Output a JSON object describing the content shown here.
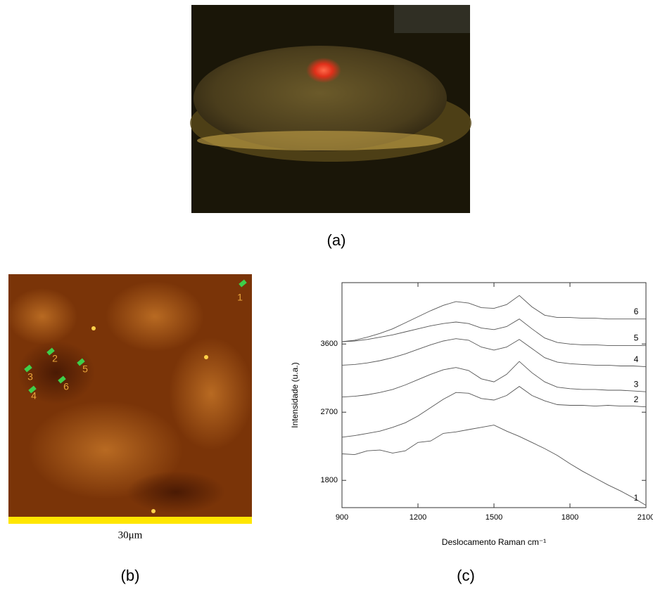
{
  "panels": {
    "a": "(a)",
    "b": "(b)",
    "c": "(c)"
  },
  "afm": {
    "scale_label": "30μm",
    "points": [
      "1",
      "2",
      "3",
      "4",
      "5",
      "6"
    ]
  },
  "chart_data": {
    "type": "line",
    "xlabel": "Deslocamento Raman cm⁻¹",
    "ylabel": "Intensidade (u.a.)",
    "x": [
      900,
      950,
      1000,
      1050,
      1100,
      1150,
      1200,
      1250,
      1300,
      1350,
      1400,
      1450,
      1500,
      1550,
      1600,
      1650,
      1700,
      1750,
      1800,
      1850,
      1900,
      1950,
      2000,
      2050,
      2100
    ],
    "xlim": [
      900,
      2100
    ],
    "xticks": [
      900,
      1200,
      1500,
      1800,
      2100
    ],
    "ylim": [
      1440,
      4410
    ],
    "yticks": [
      1800,
      2700,
      3600
    ],
    "series": [
      {
        "name": "1",
        "color": "#555555",
        "values": [
          2150,
          2140,
          2190,
          2200,
          2160,
          2190,
          2300,
          2320,
          2420,
          2440,
          2470,
          2500,
          2530,
          2450,
          2380,
          2300,
          2220,
          2130,
          2020,
          1920,
          1830,
          1740,
          1660,
          1570,
          1470
        ]
      },
      {
        "name": "2",
        "color": "#555555",
        "values": [
          2370,
          2390,
          2420,
          2450,
          2500,
          2560,
          2650,
          2760,
          2870,
          2960,
          2950,
          2880,
          2860,
          2920,
          3040,
          2920,
          2850,
          2800,
          2790,
          2790,
          2780,
          2790,
          2780,
          2780,
          2770
        ]
      },
      {
        "name": "3",
        "color": "#555555",
        "values": [
          2900,
          2910,
          2930,
          2960,
          3000,
          3060,
          3130,
          3200,
          3260,
          3290,
          3250,
          3140,
          3100,
          3200,
          3370,
          3220,
          3100,
          3030,
          3010,
          3000,
          3000,
          2990,
          2990,
          2980,
          2970
        ]
      },
      {
        "name": "4",
        "color": "#555555",
        "values": [
          3320,
          3330,
          3350,
          3380,
          3420,
          3470,
          3530,
          3590,
          3640,
          3670,
          3650,
          3560,
          3520,
          3560,
          3660,
          3540,
          3420,
          3360,
          3340,
          3330,
          3320,
          3320,
          3310,
          3310,
          3300
        ]
      },
      {
        "name": "5",
        "color": "#555555",
        "values": [
          3630,
          3640,
          3660,
          3690,
          3720,
          3760,
          3800,
          3840,
          3870,
          3890,
          3870,
          3810,
          3790,
          3830,
          3930,
          3800,
          3680,
          3620,
          3600,
          3590,
          3590,
          3580,
          3580,
          3580,
          3580
        ]
      },
      {
        "name": "6",
        "color": "#555555",
        "values": [
          3630,
          3650,
          3690,
          3740,
          3800,
          3880,
          3960,
          4040,
          4110,
          4160,
          4140,
          4080,
          4070,
          4120,
          4240,
          4090,
          3980,
          3950,
          3950,
          3940,
          3940,
          3930,
          3930,
          3930,
          3930
        ]
      }
    ]
  }
}
